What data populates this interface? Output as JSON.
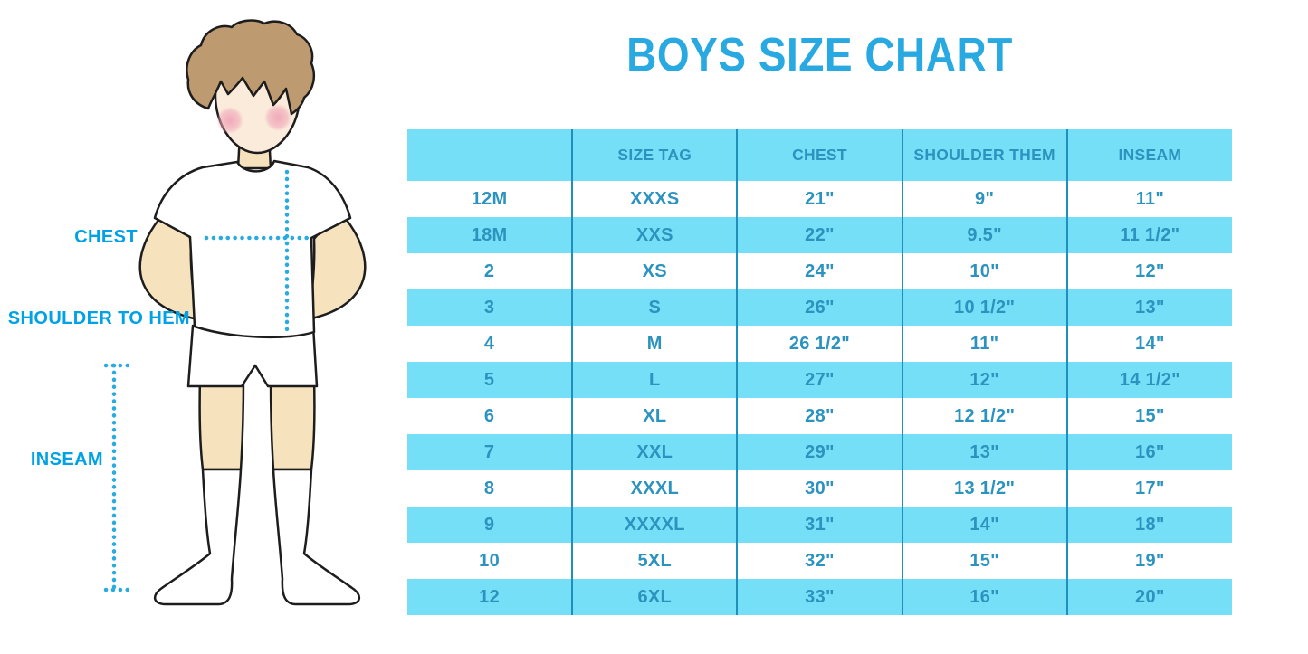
{
  "page": {
    "title": "BOYS SIZE CHART"
  },
  "figure": {
    "description": "cartoon boy in white t-shirt, shorts and knee socks with measurement guide lines",
    "labels": {
      "chest": "CHEST",
      "shoulder_to_hem": "SHOULDER TO HEM",
      "inseam": "INSEAM"
    }
  },
  "chart_data": {
    "type": "table",
    "title": "BOYS SIZE CHART",
    "columns": [
      "",
      "SIZE TAG",
      "CHEST",
      "SHOULDER THEM",
      "INSEAM"
    ],
    "rows": [
      [
        "12M",
        "XXXS",
        "21\"",
        "9\"",
        "11\""
      ],
      [
        "18M",
        "XXS",
        "22\"",
        "9.5\"",
        "11 1/2\""
      ],
      [
        "2",
        "XS",
        "24\"",
        "10\"",
        "12\""
      ],
      [
        "3",
        "S",
        "26\"",
        "10 1/2\"",
        "13\""
      ],
      [
        "4",
        "M",
        "26 1/2\"",
        "11\"",
        "14\""
      ],
      [
        "5",
        "L",
        "27\"",
        "12\"",
        "14 1/2\""
      ],
      [
        "6",
        "XL",
        "28\"",
        "12 1/2\"",
        "15\""
      ],
      [
        "7",
        "XXL",
        "29\"",
        "13\"",
        "16\""
      ],
      [
        "8",
        "XXXL",
        "30\"",
        "13 1/2\"",
        "17\""
      ],
      [
        "9",
        "XXXXL",
        "31\"",
        "14\"",
        "18\""
      ],
      [
        "10",
        "5XL",
        "32\"",
        "15\"",
        "19\""
      ],
      [
        "12",
        "6XL",
        "33\"",
        "16\"",
        "20\""
      ]
    ],
    "annotations": [
      "CHEST",
      "SHOULDER TO HEM",
      "INSEAM"
    ],
    "layout": {
      "header_fill": true,
      "row_striping": "white/blue alternating starting white",
      "grid": "vertical column separators only"
    }
  },
  "colors": {
    "title_blue": "#29A9E1",
    "label_cyan": "#00A2E5",
    "row_fill_blue": "#76DFF8",
    "table_text_blue": "#2B93BE",
    "column_line_blue": "#1F90BE",
    "dotted_line_cyan": "#29ABE2",
    "skin": "#F7E2BE",
    "face": "#FAEBDB",
    "hair_brown": "#BD9A6F",
    "cheek_pink": "#F0A6B8"
  }
}
